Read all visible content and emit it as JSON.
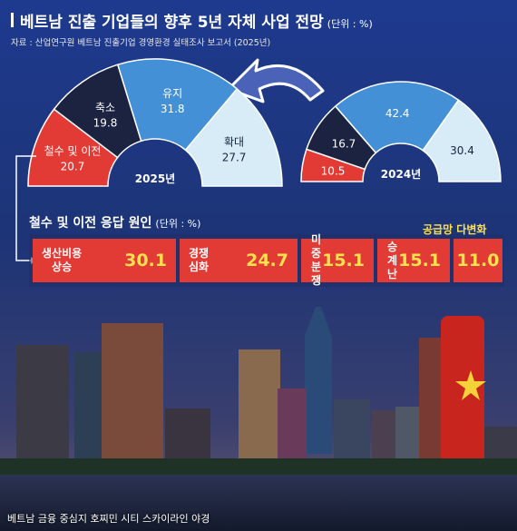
{
  "header": {
    "title": "베트남 진출 기업들의 향후 5년 자체 사업 전망",
    "unit": "(단위 : %)",
    "source": "자료 : 산업연구원 베트남 진출기업 경영환경 실태조사 보고서 (2025년)"
  },
  "chart_data": [
    {
      "type": "pie",
      "subtype": "half-donut",
      "center_label": "2025년",
      "categories": [
        "철수 및 이전",
        "축소",
        "유지",
        "확대"
      ],
      "values": [
        20.7,
        19.8,
        31.8,
        27.7
      ]
    },
    {
      "type": "pie",
      "subtype": "half-donut",
      "center_label": "2024년",
      "categories": [
        "",
        "",
        "",
        ""
      ],
      "values": [
        10.5,
        16.7,
        42.4,
        30.4
      ]
    },
    {
      "type": "bar",
      "title": "철수 및 이전 응답 원인",
      "unit": "(단위 : %)",
      "categories": [
        "생산비용 상승",
        "경쟁 심화",
        "미중 분쟁",
        "승계난",
        "공급망 다변화"
      ],
      "values": [
        30.1,
        24.7,
        15.1,
        15.1,
        11.0
      ]
    }
  ],
  "colors": {
    "withdraw": "#e23b36",
    "shrink": "#1b2340",
    "maintain": "#4390d6",
    "expand": "#d7ecf6",
    "highlight": "#ffe14d"
  },
  "reasons": [
    {
      "label_line1": "생산비용",
      "label_line2": "상승",
      "value": "30.1"
    },
    {
      "label_line1": "경쟁",
      "label_line2": "심화",
      "value": "24.7"
    },
    {
      "label_line1": "미중",
      "label_line2": "분쟁",
      "value": "15.1"
    },
    {
      "label_line1": "승계난",
      "label_line2": "",
      "value": "15.1"
    },
    {
      "label": "공급망 다변화",
      "value": "11.0"
    }
  ],
  "donut2025": {
    "labels": [
      "철수 및 이전",
      "축소",
      "유지",
      "확대"
    ],
    "values": [
      "20.7",
      "19.8",
      "31.8",
      "27.7"
    ],
    "center": "2025년"
  },
  "donut2024": {
    "values": [
      "10.5",
      "16.7",
      "42.4",
      "30.4"
    ],
    "center": "2024년"
  },
  "caption": "베트남 금융 중심지 호찌민 시티 스카이라인 야경"
}
